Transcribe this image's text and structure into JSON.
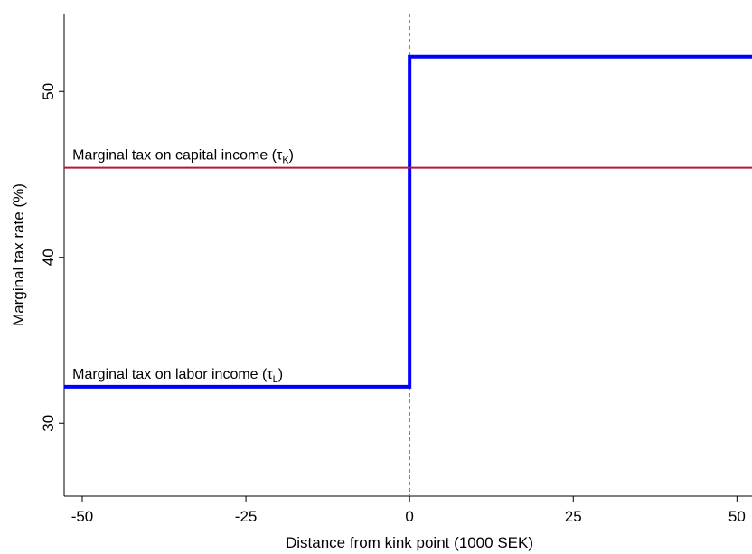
{
  "chart_data": {
    "type": "line",
    "xlabel": "Distance from kink point (1000 SEK)",
    "ylabel": "Marginal tax rate (%)",
    "xlim": [
      -52.76,
      52.3
    ],
    "ylim": [
      25.6,
      54.7
    ],
    "xticks": [
      -50,
      -25,
      0,
      25,
      50
    ],
    "yticks": [
      30,
      40,
      50
    ],
    "grid": false,
    "vline": {
      "x": 0,
      "color": "#ff4040",
      "dashed": true
    },
    "series": [
      {
        "x": [
          -52.76,
          0,
          0,
          52.3
        ],
        "values": [
          32.2,
          32.2,
          52.1,
          52.1
        ],
        "color": "#0000ff",
        "width": 4
      },
      {
        "x": [
          -52.76,
          52.3
        ],
        "values": [
          45.4,
          45.4
        ],
        "color": "#b5163f",
        "width": 2
      }
    ],
    "annotations": [
      {
        "text": "Marginal tax on capital income (τ",
        "subscript": "K",
        "close": ")",
        "x": -51.5,
        "y": 45.4
      },
      {
        "text": "Marginal tax on labor income (τ",
        "subscript": "L",
        "close": ")",
        "x": -51.5,
        "y": 32.2
      }
    ]
  }
}
